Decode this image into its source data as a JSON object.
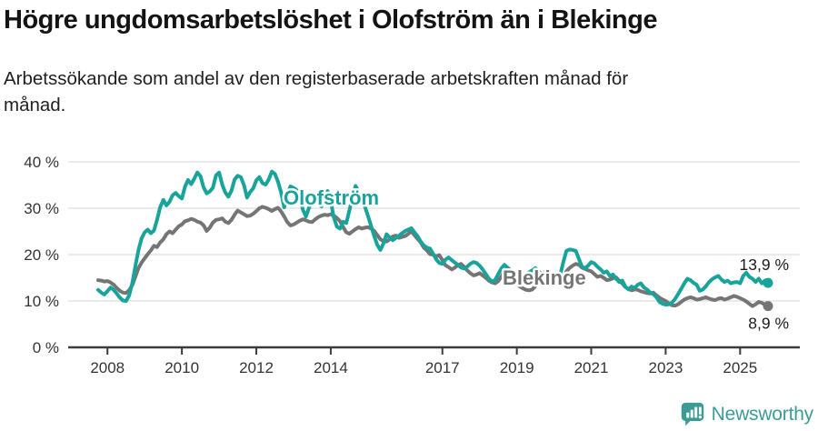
{
  "header": {
    "title": "Högre ungdomsarbetslöshet i Olofström än i Blekinge",
    "subtitle_line1": "Arbetssökande som andel av den registerbaserade arbetskraften månad för",
    "subtitle_line2": "månad."
  },
  "colors": {
    "olofstrom": "#18a39b",
    "blekinge": "#757575",
    "grid": "#e3e3e3",
    "axis": "#3c3c3c",
    "text": "#1a1a1a",
    "logo": "#3d9b95"
  },
  "footer": {
    "brand": "Newsworthy",
    "logo_icon": "speech-bubble-bar-chart-icon"
  },
  "chart_data": {
    "type": "line",
    "title": "Högre ungdomsarbetslöshet i Olofström än i Blekinge",
    "subtitle": "Arbetssökande som andel av den registerbaserade arbetskraften månad för månad.",
    "x_unit": "month",
    "x_start": "2007-10",
    "x_end": "2025-10",
    "ylim": [
      0,
      40
    ],
    "grid": "horizontal",
    "y_ticks": [
      {
        "label": "0 %",
        "value": 0
      },
      {
        "label": "10 %",
        "value": 10
      },
      {
        "label": "20 %",
        "value": 20
      },
      {
        "label": "30 %",
        "value": 30
      },
      {
        "label": "40 %",
        "value": 40
      }
    ],
    "x_ticks": [
      {
        "label": "2008",
        "month_index": 3
      },
      {
        "label": "2010",
        "month_index": 27
      },
      {
        "label": "2012",
        "month_index": 51
      },
      {
        "label": "2014",
        "month_index": 75
      },
      {
        "label": "2017",
        "month_index": 111
      },
      {
        "label": "2019",
        "month_index": 135
      },
      {
        "label": "2021",
        "month_index": 159
      },
      {
        "label": "2023",
        "month_index": 183
      },
      {
        "label": "2025",
        "month_index": 207
      }
    ],
    "series": [
      {
        "name": "Olofström",
        "color": "#18a39b",
        "end_label": "13,9 %",
        "values": [
          12.4,
          11.8,
          11.4,
          12.1,
          12.9,
          12.4,
          11.6,
          10.7,
          10.1,
          10.0,
          11.2,
          13.8,
          17.5,
          21.0,
          23.5,
          24.8,
          25.4,
          24.6,
          25.2,
          27.5,
          30.2,
          31.8,
          30.6,
          31.4,
          32.8,
          33.3,
          32.6,
          32.1,
          34.6,
          36.1,
          35.2,
          36.4,
          37.7,
          36.9,
          34.5,
          33.2,
          33.6,
          34.4,
          37.1,
          37.7,
          35.1,
          33.4,
          32.5,
          33.8,
          36.2,
          37.0,
          36.7,
          35.0,
          32.3,
          33.5,
          34.3,
          36.0,
          36.7,
          35.4,
          35.1,
          36.2,
          37.9,
          37.4,
          35.7,
          33.4,
          30.2,
          32.9,
          34.7,
          34.4,
          33.9,
          32.6,
          29.7,
          28.2,
          30.1,
          31.4,
          32.8,
          31.0,
          30.4,
          32.3,
          33.7,
          31.5,
          28.0,
          26.0,
          25.6,
          27.1,
          26.8,
          29.5,
          32.4,
          34.8,
          33.6,
          31.8,
          30.4,
          28.4,
          26.2,
          24.0,
          22.1,
          21.0,
          22.4,
          24.4,
          23.7,
          23.1,
          23.6,
          24.1,
          24.6,
          25.1,
          25.4,
          25.7,
          24.8,
          24.0,
          22.8,
          22.0,
          21.5,
          21.3,
          20.2,
          19.0,
          18.2,
          18.0,
          18.9,
          19.4,
          18.8,
          18.3,
          17.8,
          17.2,
          17.0,
          17.4,
          18.0,
          18.4,
          18.2,
          17.6,
          16.8,
          15.8,
          14.8,
          14.2,
          14.5,
          15.8,
          17.0,
          17.8,
          17.2,
          16.6,
          16.0,
          15.4,
          15.0,
          15.3,
          15.8,
          16.2,
          16.6,
          17.1,
          16.4,
          15.9,
          16.2,
          15.8,
          15.4,
          15.1,
          14.8,
          15.6,
          18.4,
          20.8,
          21.1,
          21.0,
          20.8,
          19.1,
          17.4,
          17.1,
          17.6,
          18.4,
          18.1,
          17.4,
          16.8,
          16.1,
          16.4,
          15.4,
          15.7,
          14.8,
          14.1,
          14.4,
          13.1,
          12.5,
          13.1,
          12.8,
          13.5,
          13.8,
          12.9,
          12.5,
          11.8,
          11.5,
          10.8,
          9.8,
          9.4,
          9.2,
          9.3,
          9.6,
          10.4,
          11.5,
          12.6,
          13.8,
          14.8,
          14.5,
          13.9,
          13.5,
          12.2,
          12.5,
          13.2,
          14.1,
          14.7,
          15.1,
          15.4,
          14.6,
          14.1,
          14.4,
          13.8,
          14.0,
          14.1,
          13.8,
          15.4,
          16.1,
          15.2,
          14.8,
          14.1,
          14.8,
          13.8,
          14.4,
          13.9
        ]
      },
      {
        "name": "Blekinge",
        "color": "#757575",
        "end_label": "8,9 %",
        "values": [
          14.5,
          14.4,
          14.2,
          14.3,
          14.0,
          13.5,
          12.8,
          12.2,
          11.8,
          11.7,
          12.3,
          13.4,
          15.2,
          17.1,
          18.3,
          19.2,
          20.1,
          20.9,
          21.9,
          21.6,
          22.6,
          23.3,
          24.4,
          25.0,
          24.6,
          25.4,
          26.1,
          26.5,
          27.2,
          27.4,
          27.7,
          27.5,
          27.1,
          26.9,
          26.3,
          25.1,
          25.8,
          26.9,
          27.5,
          27.6,
          27.8,
          27.1,
          26.8,
          27.5,
          28.6,
          29.5,
          29.1,
          28.7,
          28.3,
          28.4,
          28.8,
          29.4,
          30.0,
          30.3,
          30.1,
          29.8,
          29.4,
          29.8,
          30.1,
          29.3,
          28.2,
          27.0,
          26.3,
          26.5,
          26.9,
          27.3,
          27.6,
          27.4,
          27.1,
          27.0,
          27.6,
          28.1,
          28.4,
          28.6,
          28.5,
          28.7,
          28.4,
          27.9,
          27.2,
          25.9,
          24.8,
          24.5,
          25.0,
          25.5,
          25.9,
          25.6,
          25.8,
          25.9,
          25.6,
          25.1,
          24.2,
          23.3,
          22.9,
          22.8,
          23.3,
          23.9,
          24.1,
          23.6,
          23.8,
          24.0,
          24.5,
          25.0,
          24.2,
          23.4,
          22.6,
          21.5,
          20.9,
          20.1,
          20.0,
          19.6,
          19.9,
          18.8,
          17.7,
          17.3,
          16.8,
          17.2,
          17.7,
          18.0,
          17.4,
          16.6,
          16.0,
          15.5,
          15.7,
          16.0,
          15.5,
          15.0,
          14.4,
          14.0,
          13.8,
          14.3,
          15.3,
          16.4,
          17.1,
          16.2,
          15.0,
          13.8,
          13.1,
          12.7,
          12.4,
          12.3,
          12.5,
          13.2,
          13.8,
          14.4,
          14.7,
          14.3,
          14.8,
          15.0,
          14.5,
          13.9,
          15.1,
          16.4,
          17.1,
          17.6,
          18.0,
          17.8,
          17.2,
          16.9,
          16.6,
          16.4,
          15.8,
          15.2,
          15.4,
          15.0,
          14.5,
          14.6,
          14.9,
          15.1,
          14.4,
          13.8,
          13.0,
          12.6,
          12.3,
          12.5,
          12.4,
          12.1,
          11.9,
          11.7,
          11.6,
          11.8,
          11.2,
          10.7,
          10.3,
          10.0,
          9.5,
          9.1,
          9.0,
          9.3,
          9.8,
          10.3,
          10.6,
          10.8,
          10.6,
          10.3,
          10.4,
          10.6,
          10.8,
          10.5,
          10.3,
          10.2,
          10.5,
          10.6,
          10.3,
          10.5,
          10.8,
          11.1,
          10.9,
          10.6,
          10.3,
          9.9,
          9.4,
          8.9,
          9.3,
          9.8,
          9.6,
          9.2,
          8.9
        ]
      }
    ],
    "legend": "inline-series-labels"
  }
}
